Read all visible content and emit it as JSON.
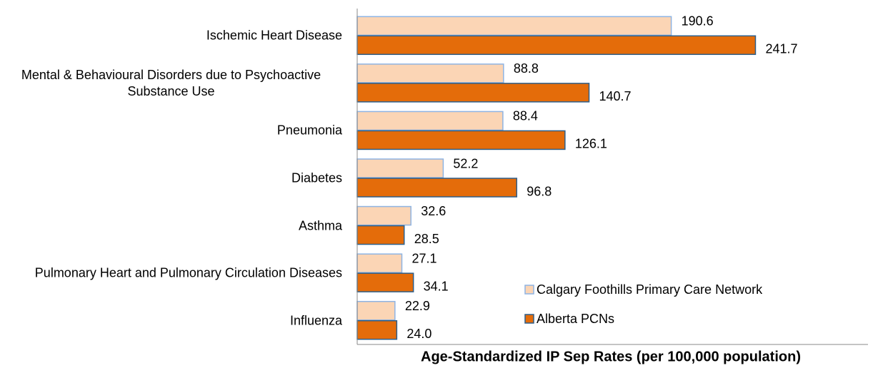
{
  "chart_data": {
    "type": "hbar",
    "x_label": "Age-Standardized IP Sep Rates (per 100,000 population)",
    "categories": [
      "Ischemic Heart Disease",
      "Mental & Behavioural Disorders due to Psychoactive Substance Use",
      "Pneumonia",
      "Diabetes",
      "Asthma",
      "Pulmonary Heart and Pulmonary Circulation Diseases",
      "Influenza"
    ],
    "series": [
      {
        "name": "Calgary Foothills Primary Care Network",
        "color": "#FBD5B5",
        "edge": "#8EB4E3",
        "values": [
          190.6,
          88.8,
          88.4,
          52.2,
          32.6,
          27.1,
          22.9
        ],
        "value_labels": [
          "190.6",
          "88.8",
          "88.4",
          "52.2",
          "32.6",
          "27.1",
          "22.9"
        ]
      },
      {
        "name": "Alberta PCNs",
        "color": "#E46C0A",
        "edge": "#2E5F8A",
        "values": [
          241.7,
          140.7,
          126.1,
          96.8,
          28.5,
          34.1,
          24.0
        ],
        "value_labels": [
          "241.7",
          "140.7",
          "126.1",
          "96.8",
          "28.5",
          "34.1",
          "24.0"
        ]
      }
    ],
    "xlim": [
      0,
      310
    ],
    "legend": "lower right"
  }
}
